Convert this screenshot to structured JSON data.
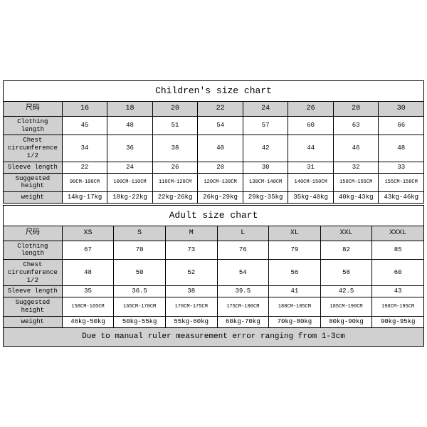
{
  "children": {
    "title": "Children's size chart",
    "sizeHeader": "尺码",
    "sizes": [
      "16",
      "18",
      "20",
      "22",
      "24",
      "26",
      "28",
      "30"
    ],
    "rows": [
      {
        "label": "Clothing length",
        "values": [
          "45",
          "48",
          "51",
          "54",
          "57",
          "60",
          "63",
          "66"
        ]
      },
      {
        "label": "Chest circumference 1/2",
        "values": [
          "34",
          "36",
          "38",
          "40",
          "42",
          "44",
          "46",
          "48"
        ]
      },
      {
        "label": "Sleeve length",
        "values": [
          "22",
          "24",
          "26",
          "28",
          "30",
          "31",
          "32",
          "33"
        ]
      },
      {
        "label": "Suggested height",
        "values": [
          "90CM-100CM",
          "100CM-110CM",
          "110CM-120CM",
          "120CM-130CM",
          "130CM-140CM",
          "140CM-150CM",
          "150CM-155CM",
          "155CM-158CM"
        ],
        "tiny": true
      },
      {
        "label": "weight",
        "values": [
          "14kg-17kg",
          "18kg-22kg",
          "22kg-26kg",
          "26kg-29kg",
          "29kg-35kg",
          "35kg-40kg",
          "40kg-43kg",
          "43kg-46kg"
        ]
      }
    ]
  },
  "adult": {
    "title": "Adult size chart",
    "sizeHeader": "尺码",
    "sizes": [
      "XS",
      "S",
      "M",
      "L",
      "XL",
      "XXL",
      "XXXL"
    ],
    "rows": [
      {
        "label": "Clothing length",
        "values": [
          "67",
          "70",
          "73",
          "76",
          "79",
          "82",
          "85"
        ]
      },
      {
        "label": "Chest circumference 1/2",
        "values": [
          "48",
          "50",
          "52",
          "54",
          "56",
          "58",
          "60"
        ]
      },
      {
        "label": "Sleeve length",
        "values": [
          "35",
          "36.5",
          "38",
          "39.5",
          "41",
          "42.5",
          "43"
        ]
      },
      {
        "label": "Suggested height",
        "values": [
          "158CM-165CM",
          "165CM-170CM",
          "170CM-175CM",
          "175CM-180CM",
          "180CM-185CM",
          "185CM-190CM",
          "190CM-195CM"
        ],
        "tiny": true
      },
      {
        "label": "weight",
        "values": [
          "46kg-50kg",
          "50kg-55kg",
          "55kg-60kg",
          "60kg-70kg",
          "70kg-80kg",
          "80kg-90kg",
          "90kg-95kg"
        ]
      }
    ],
    "note": "Due to manual ruler measurement error ranging from 1-3cm"
  },
  "style": {
    "header_bg": "#d0d0d0",
    "border_color": "#000000",
    "background": "#ffffff",
    "font_family": "Courier New"
  }
}
